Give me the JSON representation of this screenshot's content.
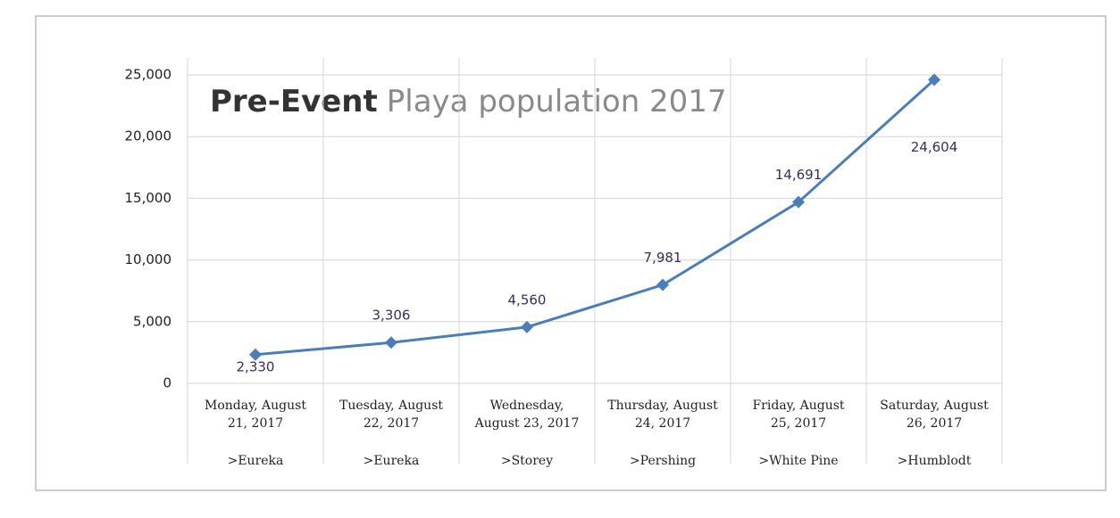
{
  "chart_data": {
    "type": "line",
    "title": [
      "Pre-Event",
      "Playa population 2017"
    ],
    "categories": [
      [
        "Monday, August",
        "21, 2017"
      ],
      [
        "Tuesday, August",
        "22, 2017"
      ],
      [
        "Wednesday,",
        "August 23, 2017"
      ],
      [
        "Thursday, August",
        "24, 2017"
      ],
      [
        "Friday, August",
        "25, 2017"
      ],
      [
        "Saturday, August",
        "26, 2017"
      ]
    ],
    "regions": [
      ">Eureka",
      ">Eureka",
      ">Storey",
      ">Pershing",
      ">White Pine",
      ">Humblodt"
    ],
    "series": [
      {
        "name": "Population",
        "color": "#4a7ebb",
        "values": [
          2330,
          3306,
          4560,
          7981,
          14691,
          24604
        ],
        "value_labels": [
          "2,330",
          "3,306",
          "4,560",
          "7,981",
          "14,691",
          "24,604"
        ]
      }
    ],
    "ylim": [
      0,
      25000
    ],
    "yticks": [
      0,
      {
        "value": 5000,
        "label": "5,000"
      },
      {
        "value": 10000,
        "label": "10,000"
      },
      {
        "value": 15000,
        "label": "15,000"
      },
      {
        "value": 20000,
        "label": "20,000"
      },
      {
        "value": 25000,
        "label": "25,000"
      }
    ],
    "grid": true
  }
}
